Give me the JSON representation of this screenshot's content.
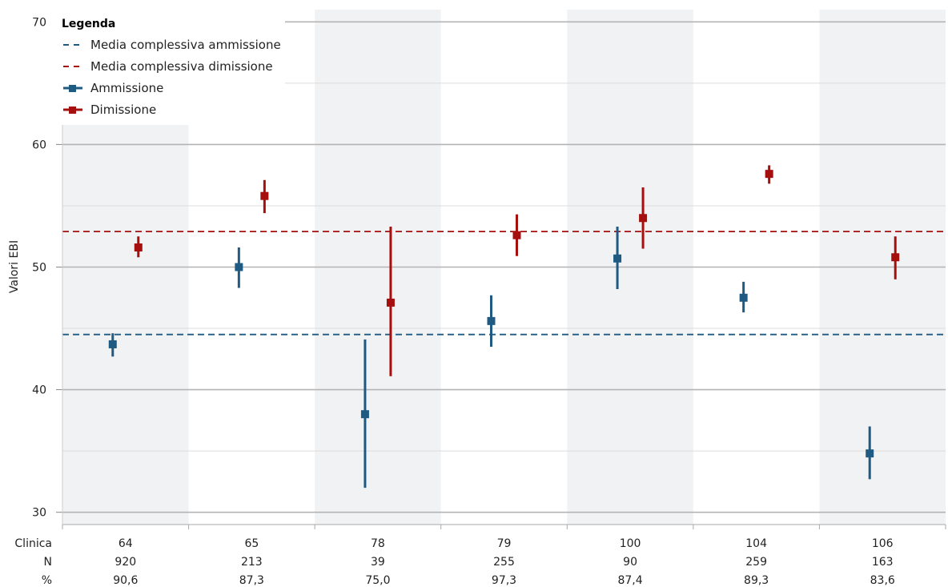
{
  "chart_data": {
    "type": "scatter",
    "ylabel": "Valori EBI",
    "ylim": [
      29,
      71
    ],
    "yticks": [
      30,
      40,
      50,
      60,
      70
    ],
    "minor_gridlines": [
      35,
      45,
      55,
      65
    ],
    "categories": [
      "64",
      "65",
      "78",
      "79",
      "100",
      "104",
      "106"
    ],
    "table_rows": [
      {
        "label": "Clinica",
        "values": [
          "64",
          "65",
          "78",
          "79",
          "100",
          "104",
          "106"
        ]
      },
      {
        "label": "N",
        "values": [
          "920",
          "213",
          "39",
          "255",
          "90",
          "259",
          "163"
        ]
      },
      {
        "label": "%",
        "values": [
          "90,6",
          "87,3",
          "75,0",
          "97,3",
          "87,4",
          "89,3",
          "83,6"
        ]
      }
    ],
    "series": [
      {
        "name": "Ammissione",
        "color": "#1f5a82",
        "mean": [
          43.7,
          50.0,
          38.0,
          45.6,
          50.7,
          47.5,
          34.8
        ],
        "ci_low": [
          42.7,
          48.3,
          32.0,
          43.5,
          48.2,
          46.3,
          32.7
        ],
        "ci_high": [
          44.6,
          51.6,
          44.1,
          47.7,
          53.3,
          48.8,
          37.0
        ]
      },
      {
        "name": "Dimissione",
        "color": "#a5100f",
        "mean": [
          51.6,
          55.8,
          47.1,
          52.6,
          54.0,
          57.6,
          50.8
        ],
        "ci_low": [
          50.8,
          54.4,
          41.1,
          50.9,
          51.5,
          56.8,
          49.0
        ],
        "ci_high": [
          52.5,
          57.1,
          53.3,
          54.3,
          56.5,
          58.3,
          52.5
        ]
      }
    ],
    "reference_lines": [
      {
        "name": "Media complessiva ammissione",
        "value": 44.5,
        "color": "#1f5a82"
      },
      {
        "name": "Media complessiva dimissione",
        "value": 52.9,
        "color": "#a5100f"
      }
    ],
    "legend": {
      "title": "Legenda",
      "placement": "top-left",
      "entries": [
        {
          "label": "Media complessiva ammissione",
          "style": "dashed",
          "color": "#1f5a82"
        },
        {
          "label": "Media complessiva dimissione",
          "style": "dashed",
          "color": "#a5100f"
        },
        {
          "label": "Ammissione",
          "style": "marker",
          "color": "#1f5a82"
        },
        {
          "label": "Dimissione",
          "style": "marker",
          "color": "#a5100f"
        }
      ]
    },
    "band_color": "#f1f2f4",
    "grid": true
  }
}
